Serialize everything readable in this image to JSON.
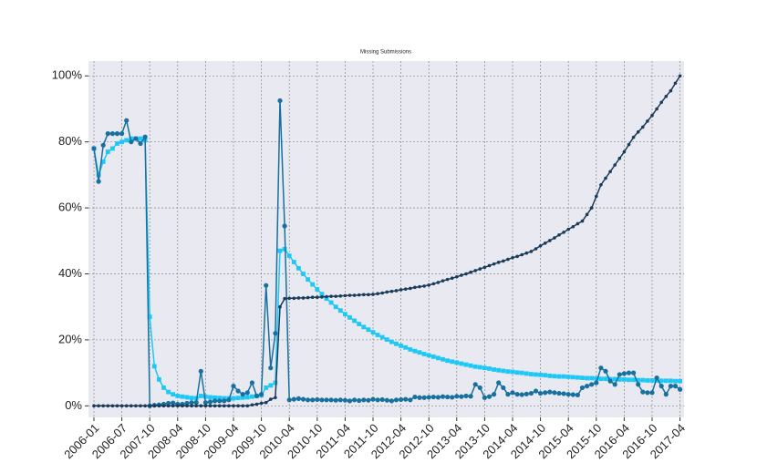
{
  "chart_data": {
    "type": "line",
    "title": "Missing Submissions",
    "categories": [
      "2006-01",
      null,
      null,
      null,
      null,
      null,
      "2006-07",
      null,
      null,
      null,
      null,
      null,
      "2007-10",
      null,
      null,
      null,
      null,
      null,
      "2008-04",
      null,
      null,
      null,
      null,
      null,
      "2008-10",
      null,
      null,
      null,
      null,
      null,
      "2009-04",
      null,
      null,
      null,
      null,
      null,
      "2009-10",
      null,
      null,
      null,
      null,
      null,
      "2010-04",
      null,
      null,
      null,
      null,
      null,
      "2010-10",
      null,
      null,
      null,
      null,
      null,
      "2011-04",
      null,
      null,
      null,
      null,
      null,
      "2011-10",
      null,
      null,
      null,
      null,
      null,
      "2012-04",
      null,
      null,
      null,
      null,
      null,
      "2012-10",
      null,
      null,
      null,
      null,
      null,
      "2013-04",
      null,
      null,
      null,
      null,
      null,
      "2013-10",
      null,
      null,
      null,
      null,
      null,
      "2014-04",
      null,
      null,
      null,
      null,
      null,
      "2014-10",
      null,
      null,
      null,
      null,
      null,
      "2015-04",
      null,
      null,
      null,
      null,
      null,
      "2015-10",
      null,
      null,
      null,
      null,
      null,
      "2016-04",
      null,
      null,
      null,
      null,
      null,
      "2016-10",
      null,
      null,
      null,
      null,
      null,
      "2017-04"
    ],
    "series": [
      {
        "color": "#1ec8f5",
        "marker": "square",
        "values": [
          78,
          70,
          74,
          77,
          78,
          79.5,
          80,
          80.5,
          81,
          81,
          81,
          80.5,
          27,
          12,
          8,
          5.5,
          4.2,
          3.5,
          3.0,
          2.8,
          2.6,
          2.4,
          2.3,
          3.0,
          2.8,
          2.6,
          2.5,
          2.4,
          2.3,
          2.3,
          2.3,
          2.4,
          2.5,
          2.6,
          2.8,
          3.0,
          3.2,
          5.5,
          6.2,
          7.0,
          47.0,
          47.5,
          45.5,
          43.6,
          41.7,
          40.0,
          38.3,
          36.8,
          35.3,
          33.9,
          32.5,
          31.3,
          30.0,
          28.9,
          27.8,
          26.8,
          25.8,
          24.8,
          23.9,
          23.1,
          22.3,
          21.5,
          20.8,
          20.1,
          19.4,
          18.8,
          18.2,
          17.7,
          17.1,
          16.6,
          16.2,
          15.7,
          15.3,
          14.9,
          14.5,
          14.1,
          13.7,
          13.4,
          13.1,
          12.8,
          12.5,
          12.2,
          11.9,
          11.7,
          11.5,
          11.3,
          11.0,
          10.8,
          10.6,
          10.4,
          10.3,
          10.1,
          10.0,
          9.8,
          9.6,
          9.5,
          9.4,
          9.3,
          9.1,
          9.0,
          8.9,
          8.9,
          8.8,
          8.7,
          8.6,
          8.5,
          8.4,
          8.4,
          8.3,
          8.2,
          8.2,
          8.1,
          8.1,
          8.0,
          8.0,
          7.9,
          7.9,
          7.8,
          7.8,
          7.7,
          7.7,
          7.7,
          7.6,
          7.6,
          7.6,
          7.5,
          7.5
        ]
      },
      {
        "color": "#17709e",
        "marker": "circle",
        "values": [
          78,
          68,
          79,
          82.5,
          82.5,
          82.5,
          82.5,
          86.5,
          80,
          81,
          79.5,
          81.5,
          0,
          0.2,
          0.3,
          0.5,
          0.8,
          0.9,
          0.5,
          0.5,
          0.8,
          1.0,
          1.0,
          10.5,
          1.0,
          1.2,
          1.5,
          1.5,
          1.5,
          1.8,
          6.0,
          4.5,
          3.5,
          4.0,
          7.0,
          3.0,
          3.5,
          36.5,
          11.5,
          22,
          92.5,
          54.5,
          1.8,
          2.0,
          2.2,
          2.0,
          1.8,
          1.8,
          1.9,
          1.8,
          1.8,
          1.8,
          1.7,
          1.8,
          1.7,
          1.5,
          1.8,
          1.6,
          1.8,
          1.7,
          2.0,
          1.8,
          1.9,
          1.7,
          1.5,
          1.8,
          1.9,
          2.0,
          1.8,
          2.7,
          2.5,
          2.5,
          2.6,
          2.7,
          2.6,
          2.8,
          2.7,
          2.6,
          2.9,
          2.8,
          3.0,
          2.9,
          6.5,
          5.5,
          2.5,
          2.8,
          3.5,
          7.0,
          5.5,
          3.5,
          4.0,
          3.5,
          3.4,
          3.6,
          3.8,
          4.5,
          3.8,
          4.0,
          4.2,
          4.0,
          3.8,
          3.7,
          3.5,
          3.4,
          3.3,
          5.5,
          6.0,
          6.5,
          7.0,
          11.5,
          10.5,
          7.5,
          6.5,
          9.5,
          9.8,
          10.0,
          10.0,
          6.5,
          4.2,
          4.0,
          4.0,
          8.5,
          6.0,
          3.5,
          6.0,
          6.0,
          5.0
        ]
      },
      {
        "color": "#1b3b5a",
        "marker": "star",
        "values": [
          0,
          0,
          0,
          0,
          0,
          0,
          0,
          0,
          0,
          0,
          0,
          0,
          0,
          0,
          0,
          0,
          0,
          0,
          0,
          0,
          0,
          0,
          0,
          0,
          0,
          0,
          0,
          0,
          0,
          0,
          0,
          0,
          0,
          0,
          0.3,
          0.5,
          0.8,
          1.0,
          2.0,
          2.5,
          30,
          32.5,
          32.6,
          32.6,
          32.7,
          32.7,
          32.8,
          32.9,
          32.9,
          33.0,
          33.1,
          33.2,
          33.2,
          33.3,
          33.4,
          33.5,
          33.5,
          33.6,
          33.7,
          33.7,
          33.8,
          34.0,
          34.2,
          34.5,
          34.7,
          34.9,
          35.2,
          35.4,
          35.6,
          35.9,
          36.1,
          36.3,
          36.6,
          37.0,
          37.4,
          37.9,
          38.3,
          38.7,
          39.1,
          39.6,
          40.0,
          40.5,
          41.0,
          41.5,
          42.0,
          42.5,
          43.0,
          43.5,
          43.9,
          44.4,
          44.9,
          45.3,
          45.8,
          46.3,
          46.8,
          47.6,
          48.5,
          49.3,
          50.1,
          50.9,
          51.8,
          52.6,
          53.5,
          54.3,
          55.2,
          56.0,
          58.0,
          60.0,
          63.5,
          67.0,
          69.0,
          71.0,
          73.0,
          75.0,
          77.0,
          79.2,
          81.4,
          83.0,
          84.5,
          86.3,
          88.0,
          90.0,
          92.0,
          93.8,
          95.5,
          97.8,
          100
        ]
      }
    ],
    "ylim": [
      -3.5,
      104.5
    ],
    "yticks": [
      {
        "value": 0,
        "label": "0%"
      },
      {
        "value": 20,
        "label": "20%"
      },
      {
        "value": 40,
        "label": "40%"
      },
      {
        "value": 60,
        "label": "60%"
      },
      {
        "value": 80,
        "label": "80%"
      },
      {
        "value": 100,
        "label": "100%"
      }
    ],
    "grid": true
  }
}
